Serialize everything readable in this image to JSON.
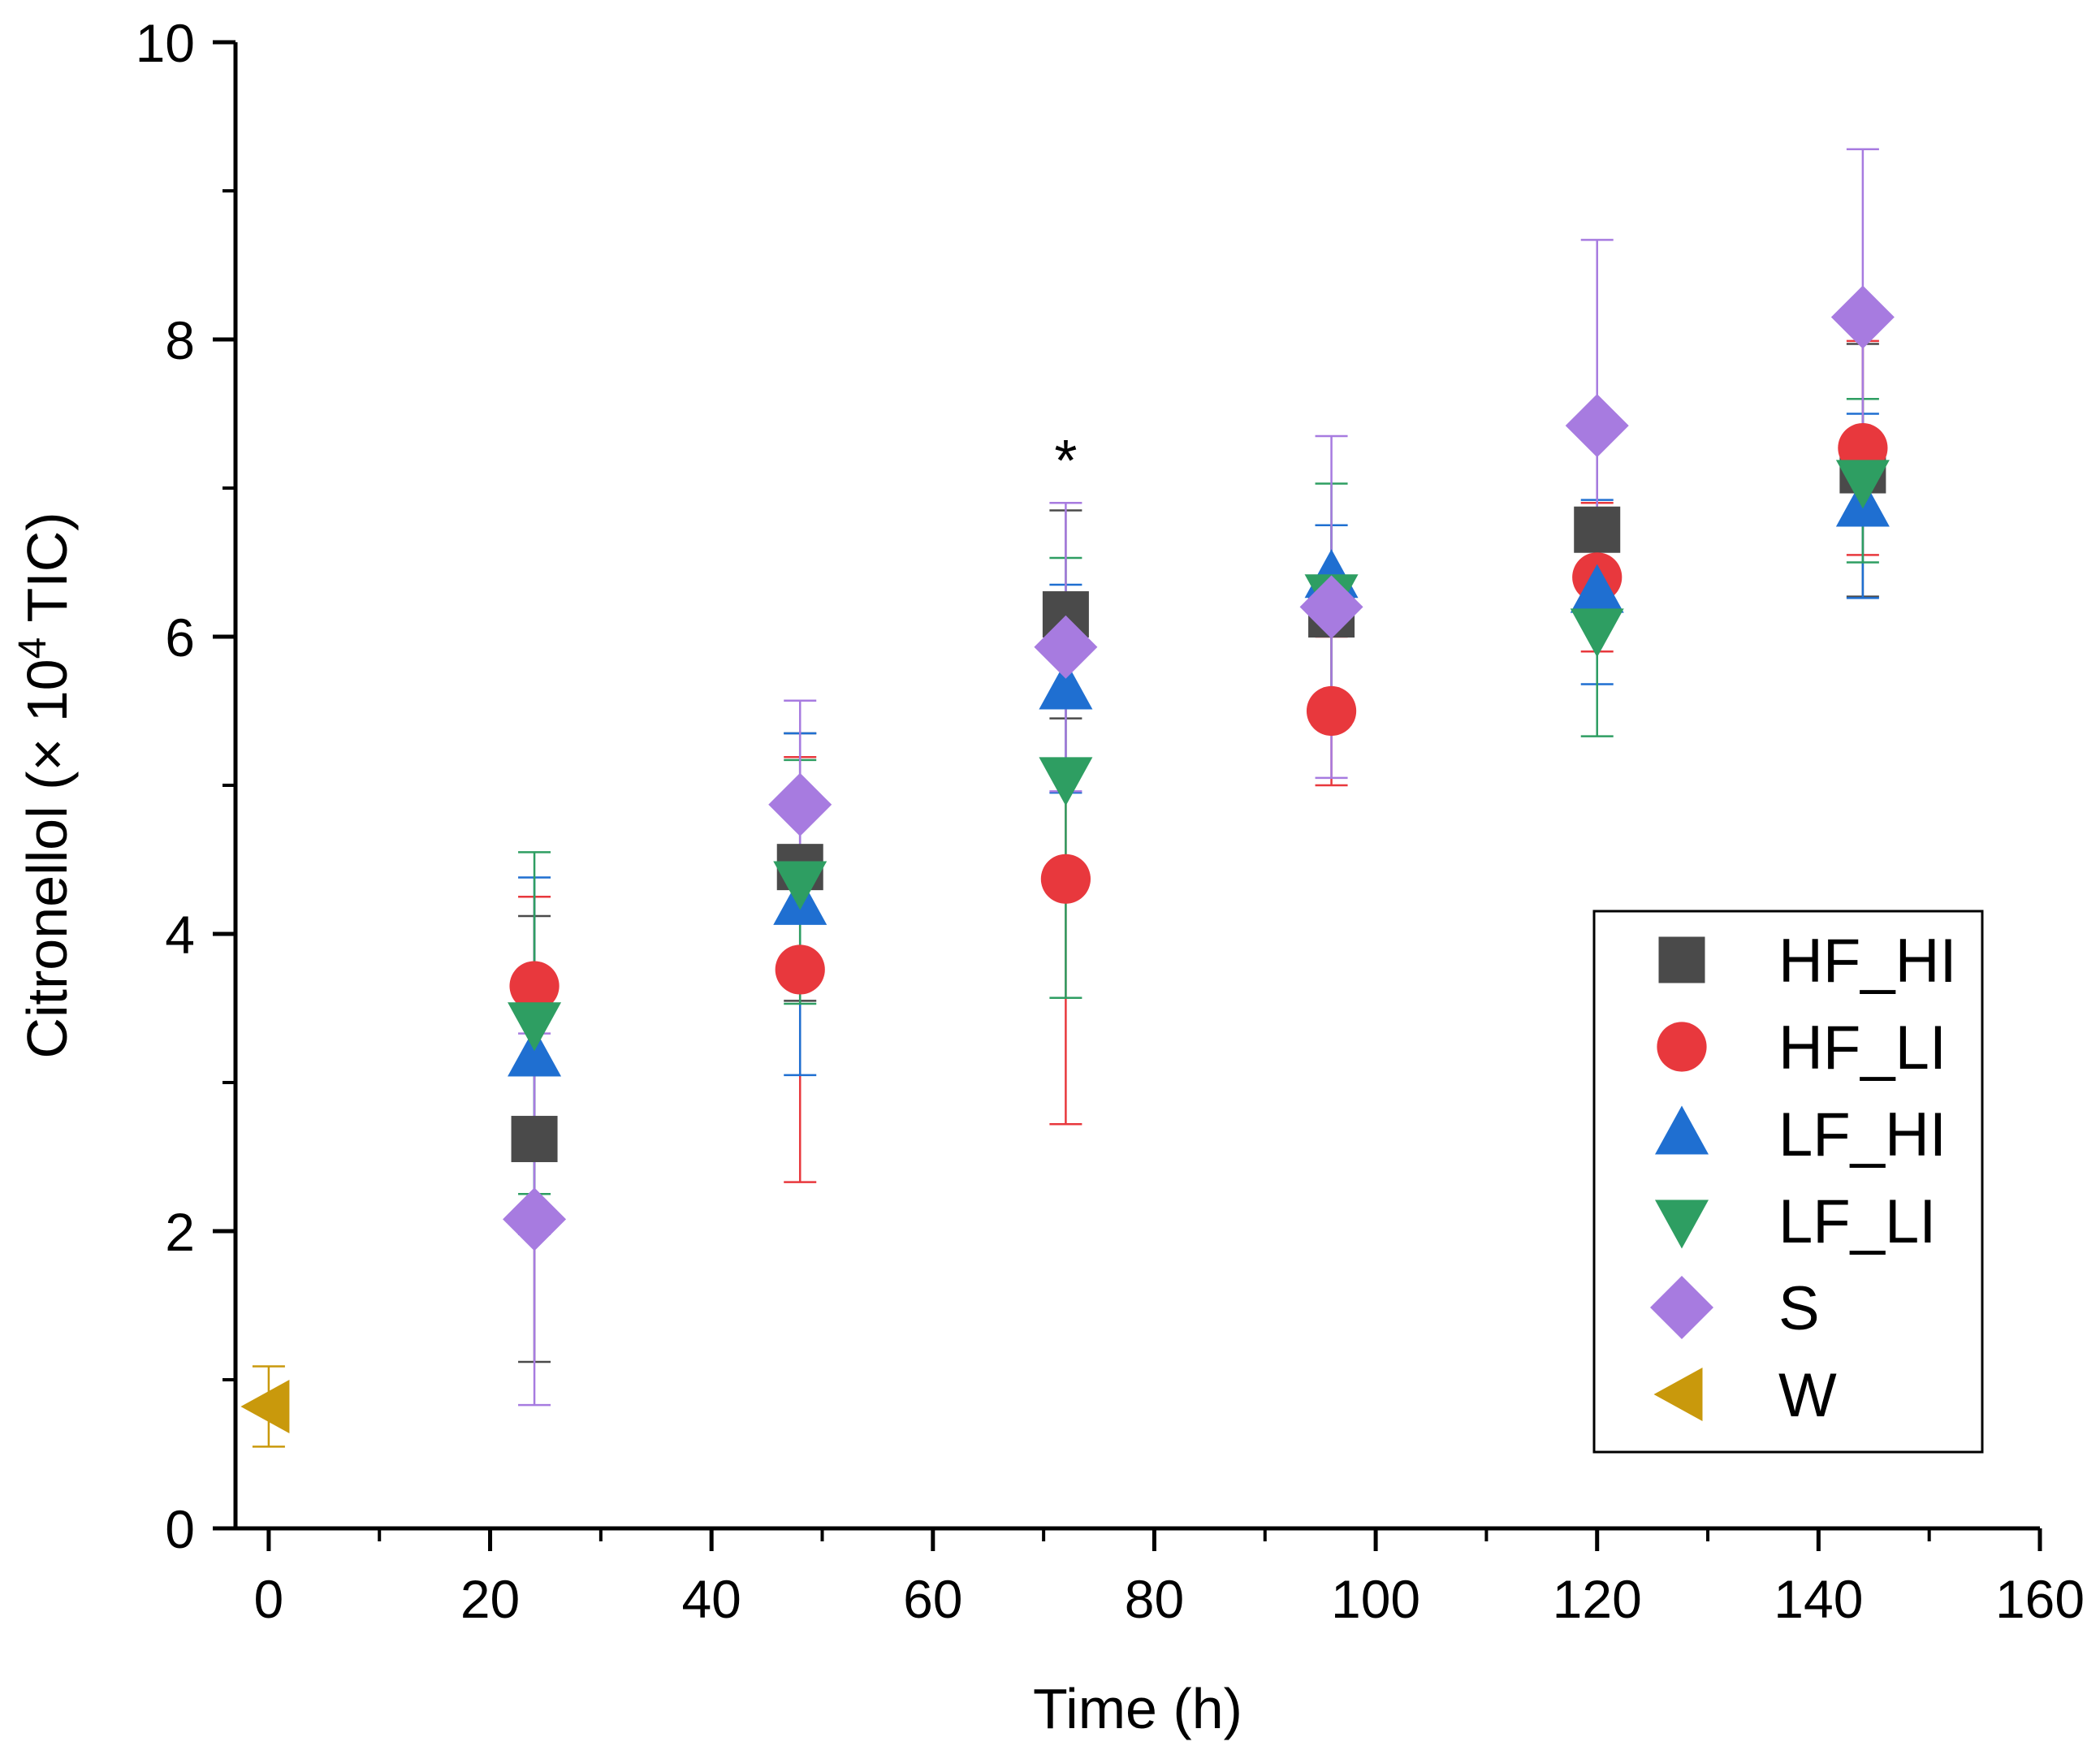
{
  "chart_data": {
    "type": "scatter",
    "title": "",
    "xlabel": "Time (h)",
    "ylabel_prefix": "Citronellol (× 10",
    "ylabel_sup": "4",
    "ylabel_suffix": " TIC)",
    "xlim": [
      -3,
      160
    ],
    "ylim": [
      0,
      10
    ],
    "x_ticks": [
      0,
      20,
      40,
      60,
      80,
      100,
      120,
      140,
      160
    ],
    "x_minor_ticks": [
      10,
      30,
      50,
      70,
      90,
      110,
      130,
      150
    ],
    "y_ticks": [
      0,
      2,
      4,
      6,
      8,
      10
    ],
    "y_minor_ticks": [
      1,
      3,
      5,
      7,
      9
    ],
    "legend_position": "lower-right",
    "annotations": [
      {
        "text": "*",
        "x": 72,
        "y": 7.3
      }
    ],
    "series": [
      {
        "name": "HF_HI",
        "marker": "square",
        "color": "#4a4a4a",
        "points": [
          {
            "x": 24,
            "y": 2.62,
            "err": 1.5
          },
          {
            "x": 48,
            "y": 4.45,
            "err": 0.9
          },
          {
            "x": 72,
            "y": 6.15,
            "err": 0.7
          },
          {
            "x": 96,
            "y": 6.15,
            "err": 0.6
          },
          {
            "x": 120,
            "y": 6.72,
            "err": 0.65
          },
          {
            "x": 144,
            "y": 7.12,
            "err": 0.85
          }
        ]
      },
      {
        "name": "HF_LI",
        "marker": "circle",
        "color": "#e8383d",
        "points": [
          {
            "x": 24,
            "y": 3.65,
            "err": 0.6
          },
          {
            "x": 48,
            "y": 3.76,
            "err": 1.43
          },
          {
            "x": 72,
            "y": 4.37,
            "err": 1.65
          },
          {
            "x": 96,
            "y": 5.5,
            "err": 0.5
          },
          {
            "x": 120,
            "y": 6.4,
            "err": 0.5
          },
          {
            "x": 144,
            "y": 7.27,
            "err": 0.72
          }
        ]
      },
      {
        "name": "LF_HI",
        "marker": "triangle-up",
        "color": "#1f6fd1",
        "points": [
          {
            "x": 24,
            "y": 3.18,
            "err": 1.2
          },
          {
            "x": 48,
            "y": 4.2,
            "err": 1.15
          },
          {
            "x": 72,
            "y": 5.65,
            "err": 0.7
          },
          {
            "x": 96,
            "y": 6.4,
            "err": 0.35
          },
          {
            "x": 120,
            "y": 6.3,
            "err": 0.62
          },
          {
            "x": 144,
            "y": 6.88,
            "err": 0.62
          }
        ]
      },
      {
        "name": "LF_LI",
        "marker": "triangle-down",
        "color": "#2e9e62",
        "points": [
          {
            "x": 24,
            "y": 3.4,
            "err": 1.15
          },
          {
            "x": 48,
            "y": 4.35,
            "err": 0.82
          },
          {
            "x": 72,
            "y": 5.05,
            "err": 1.48
          },
          {
            "x": 96,
            "y": 6.28,
            "err": 0.75
          },
          {
            "x": 120,
            "y": 6.05,
            "err": 0.72
          },
          {
            "x": 144,
            "y": 7.05,
            "err": 0.55
          }
        ]
      },
      {
        "name": "S",
        "marker": "diamond",
        "color": "#a77be0",
        "points": [
          {
            "x": 24,
            "y": 2.08,
            "err": 1.25
          },
          {
            "x": 48,
            "y": 4.87,
            "err": 0.7
          },
          {
            "x": 72,
            "y": 5.93,
            "err": 0.97
          },
          {
            "x": 96,
            "y": 6.2,
            "err": 1.15
          },
          {
            "x": 120,
            "y": 7.42,
            "err": 1.25
          },
          {
            "x": 144,
            "y": 8.15,
            "err": 1.13
          }
        ]
      },
      {
        "name": "W",
        "marker": "triangle-left",
        "color": "#c9990c",
        "points": [
          {
            "x": 0,
            "y": 0.82,
            "err": 0.27
          }
        ]
      }
    ]
  }
}
